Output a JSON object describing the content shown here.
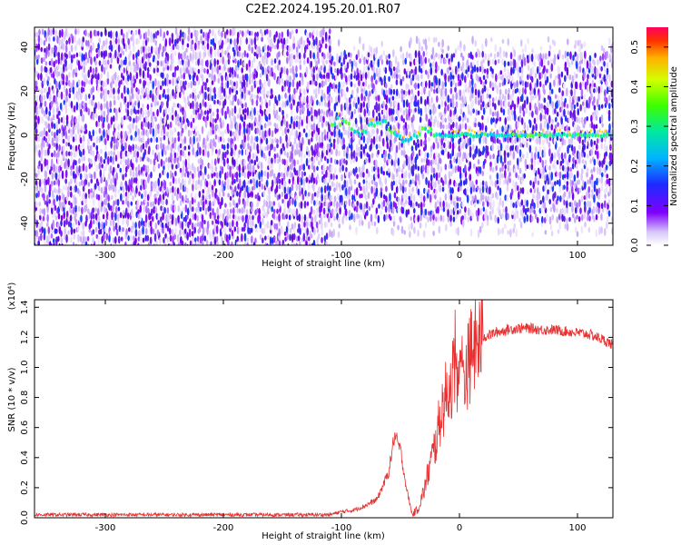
{
  "title": "C2E2.2024.195.20.01.R07",
  "chart_data": [
    {
      "type": "heatmap",
      "xlabel": "Height of straight line (km)",
      "ylabel": "Frequency (Hz)",
      "xlim": [
        -360,
        130
      ],
      "ylim": [
        -50,
        49
      ],
      "x_ticks": [
        -300,
        -200,
        -100,
        0,
        100
      ],
      "y_ticks": [
        -40,
        -20,
        0,
        20,
        40
      ],
      "colorbar": {
        "label": "Normalized spectral amplitude",
        "range": [
          0.0,
          0.55
        ],
        "ticks": [
          "0.0",
          "0.1",
          "0.2",
          "0.3",
          "0.4",
          "0.5"
        ]
      },
      "features": {
        "noise_band_left_x": [
          -360,
          -110
        ],
        "noise_band_left_freq": [
          -50,
          49
        ],
        "noise_band_right_x": [
          -110,
          130
        ],
        "noise_band_right_freq": [
          -38,
          38
        ],
        "signal_line_freq_hz": 0,
        "signal_start_x": -110
      }
    },
    {
      "type": "line",
      "xlabel": "Height of straight line (km)",
      "ylabel": "SNR (10 * v/v)",
      "y_multiplier": "(x10⁴)",
      "xlim": [
        -360,
        130
      ],
      "ylim": [
        0,
        1.45
      ],
      "x_ticks": [
        -300,
        -200,
        -100,
        0,
        100
      ],
      "y_ticks": [
        "0.0",
        "0.2",
        "0.4",
        "0.6",
        "0.8",
        "1.0",
        "1.2",
        "1.4"
      ],
      "series_color": "#e83030",
      "series": [
        {
          "name": "SNR",
          "x": [
            -360,
            -110,
            -100,
            -90,
            -80,
            -70,
            -60,
            -55,
            -50,
            -45,
            -40,
            -35,
            -30,
            -25,
            -20,
            -15,
            -10,
            -5,
            0,
            5,
            10,
            20,
            30,
            40,
            50,
            60,
            70,
            80,
            90,
            100,
            110,
            120,
            130
          ],
          "y": [
            0.02,
            0.02,
            0.04,
            0.05,
            0.08,
            0.12,
            0.3,
            0.55,
            0.45,
            0.2,
            0.02,
            0.06,
            0.18,
            0.35,
            0.5,
            0.72,
            0.85,
            0.95,
            1.0,
            0.95,
            1.1,
            1.2,
            1.23,
            1.25,
            1.26,
            1.26,
            1.25,
            1.25,
            1.24,
            1.23,
            1.22,
            1.19,
            1.15
          ]
        }
      ]
    }
  ]
}
